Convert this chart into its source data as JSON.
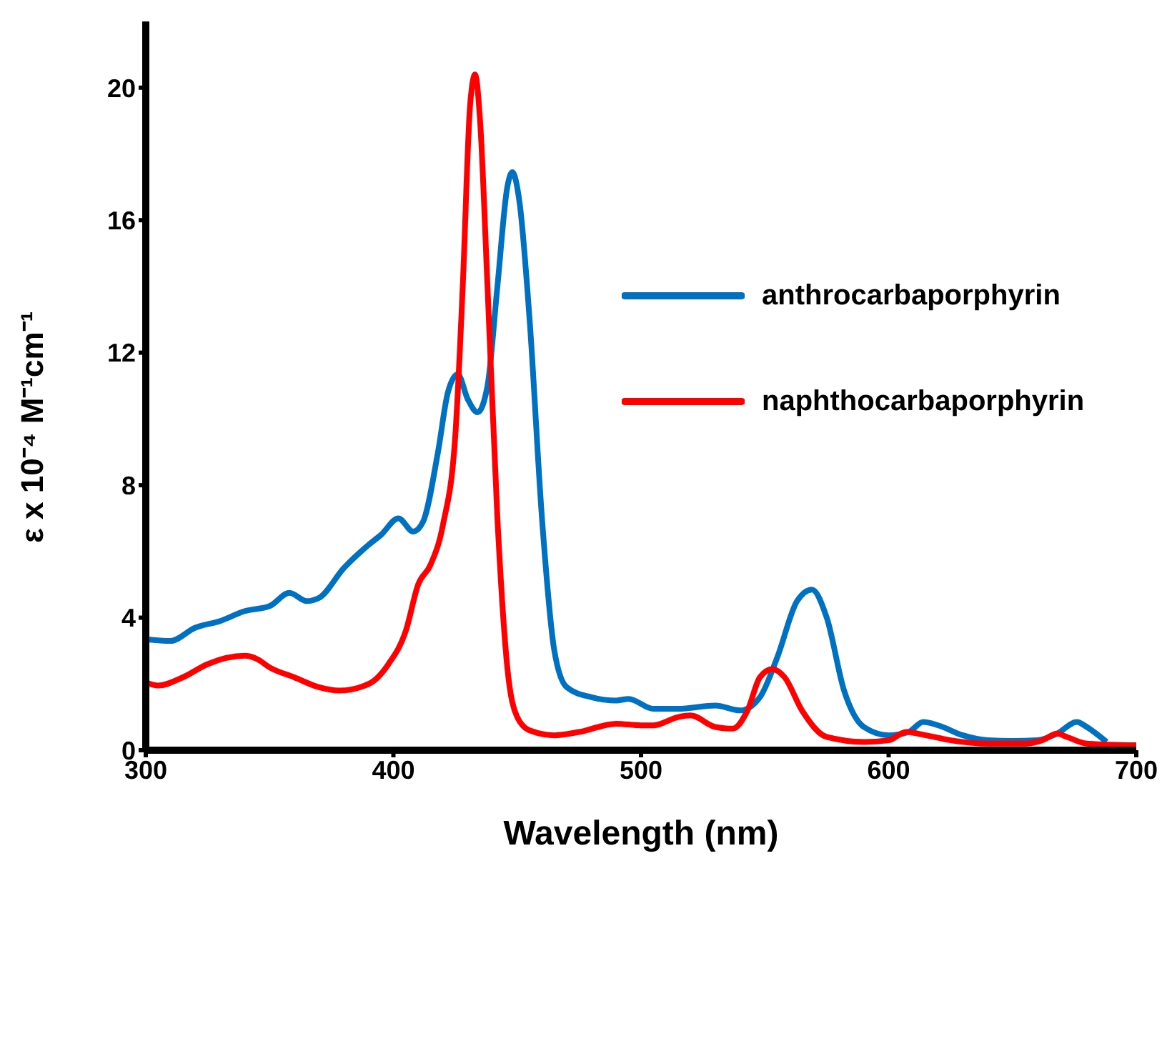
{
  "chart_data": {
    "type": "line",
    "xlabel": "Wavelength (nm)",
    "ylabel": "ε x 10⁻⁴ M⁻¹cm⁻¹",
    "xlim": [
      300,
      700
    ],
    "xticks": [
      300,
      400,
      500,
      600,
      700
    ],
    "ylim": [
      0,
      22
    ],
    "yticks": [
      0,
      4,
      8,
      12,
      16,
      20
    ],
    "grid": false,
    "legend": "top right",
    "marker": "none",
    "line_style": "solid",
    "series": [
      {
        "name": "anthrocarbaporphyrin",
        "color": "#0070c0",
        "x": [
          300,
          310,
          320,
          330,
          340,
          350,
          358,
          365,
          370,
          380,
          390,
          395,
          402,
          408,
          412,
          418,
          422,
          426,
          430,
          434,
          438,
          442,
          446,
          448,
          451,
          455,
          460,
          465,
          470,
          480,
          490,
          495,
          505,
          515,
          530,
          540,
          548,
          555,
          563,
          569,
          575,
          582,
          590,
          600,
          608,
          614,
          620,
          630,
          640,
          650,
          660,
          668,
          676,
          680,
          688
        ],
        "values": [
          3.35,
          3.3,
          3.7,
          3.9,
          4.2,
          4.35,
          4.75,
          4.5,
          4.6,
          5.5,
          6.2,
          6.5,
          7.0,
          6.6,
          6.9,
          9.0,
          10.8,
          11.35,
          10.6,
          10.2,
          11.0,
          14.0,
          17.0,
          17.45,
          16.5,
          13.0,
          7.0,
          3.0,
          1.9,
          1.6,
          1.5,
          1.55,
          1.25,
          1.25,
          1.35,
          1.2,
          1.6,
          2.8,
          4.5,
          4.85,
          4.0,
          1.8,
          0.7,
          0.45,
          0.55,
          0.85,
          0.75,
          0.45,
          0.3,
          0.28,
          0.3,
          0.5,
          0.85,
          0.7,
          0.25
        ]
      },
      {
        "name": "naphthocarbaporphyrin",
        "color": "#ff0000",
        "x": [
          300,
          305,
          315,
          325,
          340,
          345,
          350,
          360,
          370,
          378,
          390,
          398,
          405,
          410,
          415,
          420,
          425,
          428,
          431,
          433,
          435,
          438,
          442,
          446,
          450,
          455,
          465,
          475,
          490,
          500,
          505,
          515,
          520,
          530,
          537,
          543,
          548,
          553,
          558,
          565,
          575,
          590,
          600,
          607,
          615,
          625,
          640,
          655,
          662,
          668,
          672,
          680,
          700
        ],
        "values": [
          2.05,
          1.95,
          2.2,
          2.6,
          2.85,
          2.75,
          2.5,
          2.2,
          1.9,
          1.8,
          2.0,
          2.6,
          3.6,
          5.0,
          5.6,
          6.8,
          9.5,
          14.0,
          19.5,
          20.4,
          19.0,
          14.0,
          7.0,
          2.5,
          1.0,
          0.6,
          0.45,
          0.55,
          0.8,
          0.75,
          0.75,
          1.0,
          1.05,
          0.7,
          0.65,
          1.2,
          2.2,
          2.45,
          2.2,
          1.2,
          0.4,
          0.25,
          0.3,
          0.55,
          0.45,
          0.3,
          0.2,
          0.2,
          0.3,
          0.5,
          0.4,
          0.2,
          0.15
        ]
      }
    ]
  }
}
